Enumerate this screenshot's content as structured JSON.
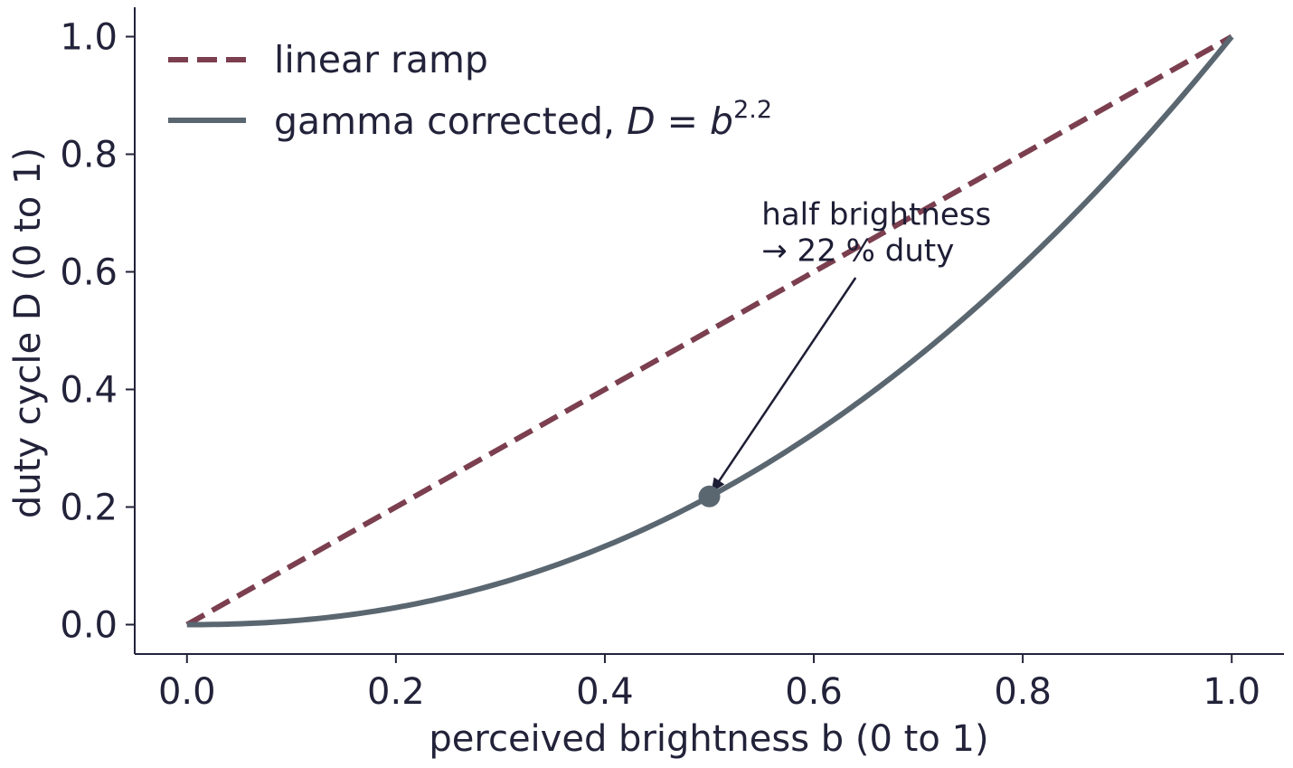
{
  "chart_data": {
    "type": "line",
    "xlabel": "perceived brightness b (0 to 1)",
    "ylabel": "duty cycle D (0 to 1)",
    "xlim": [
      -0.05,
      1.05
    ],
    "ylim": [
      -0.05,
      1.05
    ],
    "x_ticks": [
      "0.0",
      "0.2",
      "0.4",
      "0.6",
      "0.8",
      "1.0"
    ],
    "y_ticks": [
      "0.0",
      "0.2",
      "0.4",
      "0.6",
      "0.8",
      "1.0"
    ],
    "grid": false,
    "legend_position": "top-left",
    "series": [
      {
        "name": "linear ramp",
        "style": "dashed",
        "color": "#7b3f4f",
        "x": [
          0.0,
          1.0
        ],
        "y": [
          0.0,
          1.0
        ]
      },
      {
        "name": "gamma corrected, D = b^2.2",
        "legend_prefix": "gamma corrected, ",
        "legend_formula_base": "D = b",
        "legend_formula_exponent": "2.2",
        "style": "solid",
        "color": "#5a6670",
        "function": "power",
        "exponent": 2.2,
        "x_range": [
          0.0,
          1.0
        ]
      }
    ],
    "annotations": [
      {
        "lines": [
          "half brightness",
          "→ 22 % duty"
        ],
        "point": {
          "x": 0.5,
          "y": 0.218
        },
        "text_anchor": {
          "x": 0.55,
          "y": 0.68
        },
        "arrow_from": {
          "x": 0.64,
          "y": 0.59
        },
        "marker_color": "#5a6670"
      }
    ],
    "axis_color": "#22223a"
  }
}
